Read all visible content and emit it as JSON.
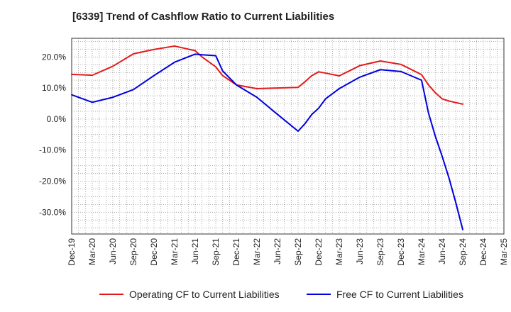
{
  "chart_data": {
    "type": "line",
    "title": "[6339]  Trend of Cashflow Ratio to Current Liabilities",
    "xlabel": "",
    "ylabel": "",
    "ylim": [
      -37,
      26
    ],
    "yticks": [
      20,
      10,
      0,
      -10,
      -20,
      -30
    ],
    "ytick_labels": [
      "20.0%",
      "10.0%",
      "0.0%",
      "-10.0%",
      "-20.0%",
      "-30.0%"
    ],
    "xtick_labels": [
      "Dec-19",
      "Mar-20",
      "Jun-20",
      "Sep-20",
      "Dec-20",
      "Mar-21",
      "Jun-21",
      "Sep-21",
      "Dec-21",
      "Mar-22",
      "Jun-22",
      "Sep-22",
      "Dec-22",
      "Mar-23",
      "Jun-23",
      "Sep-23",
      "Dec-23",
      "Mar-24",
      "Jun-24",
      "Sep-24",
      "Dec-24",
      "Mar-25"
    ],
    "grid": true,
    "legend_position": "bottom",
    "x": [
      "Dec-19",
      "Mar-20",
      "Jun-20",
      "Sep-20",
      "Dec-20",
      "Mar-21",
      "Jun-21",
      "Jul-21",
      "Sep-21",
      "Oct-21",
      "Dec-21",
      "Mar-22",
      "Jun-22",
      "Sep-22",
      "Oct-22",
      "Nov-22",
      "Dec-22",
      "Jan-23",
      "Mar-23",
      "Jun-23",
      "Sep-23",
      "Dec-23",
      "Mar-24",
      "Apr-24",
      "May-24",
      "Jun-24",
      "Jul-24",
      "Aug-24",
      "Sep-24"
    ],
    "series": [
      {
        "name": "Operating CF to Current Liabilities",
        "color": "#e31a1c",
        "values": [
          14.4,
          14.1,
          17.0,
          21.0,
          22.4,
          23.5,
          22.0,
          20.0,
          16.8,
          14.0,
          11.0,
          9.8,
          10.0,
          10.2,
          12.0,
          14.0,
          15.2,
          14.8,
          13.9,
          17.2,
          18.7,
          17.6,
          14.3,
          11.0,
          8.5,
          6.5,
          5.8,
          5.3,
          4.8
        ]
      },
      {
        "name": "Free CF to Current Liabilities",
        "color": "#0000e0",
        "values": [
          7.8,
          5.4,
          7.0,
          9.5,
          14.0,
          18.3,
          20.9,
          20.7,
          20.4,
          15.5,
          11.0,
          7.0,
          1.5,
          -3.9,
          -1.5,
          1.5,
          3.5,
          6.5,
          9.8,
          13.5,
          15.9,
          15.3,
          12.5,
          2.0,
          -5.5,
          -12.0,
          -19.0,
          -27.0,
          -35.6
        ]
      }
    ]
  },
  "legend": {
    "items": [
      {
        "label": "Operating CF to Current Liabilities",
        "color": "#e31a1c"
      },
      {
        "label": "Free CF to Current Liabilities",
        "color": "#0000e0"
      }
    ]
  }
}
